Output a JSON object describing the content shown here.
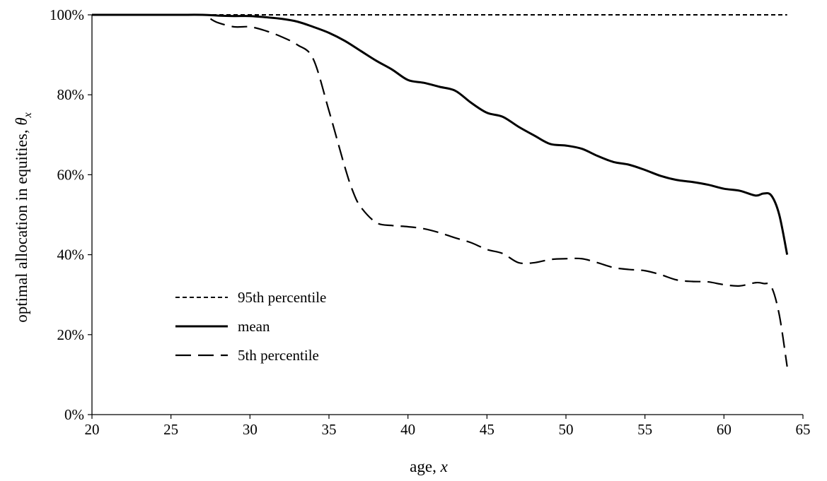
{
  "chart_data": {
    "type": "line",
    "title": "",
    "xlabel": {
      "text": "age, ",
      "var": "x"
    },
    "ylabel": {
      "text": "optimal allocation in equities, ",
      "var": "θ",
      "sub": "x"
    },
    "xlim": [
      20,
      65
    ],
    "ylim": [
      0,
      1
    ],
    "xticks": [
      20,
      25,
      30,
      35,
      40,
      45,
      50,
      55,
      60,
      65
    ],
    "xtick_labels": [
      "20",
      "25",
      "30",
      "35",
      "40",
      "45",
      "50",
      "55",
      "60",
      "65"
    ],
    "yticks": [
      0,
      0.2,
      0.4,
      0.6,
      0.8,
      1.0
    ],
    "ytick_labels": [
      "0%",
      "20%",
      "40%",
      "60%",
      "80%",
      "100%"
    ],
    "grid": false,
    "legend_position": "lower-left",
    "series": [
      {
        "name": "95th percentile",
        "style": "dotted",
        "color": "#000000",
        "x": [
          20,
          64
        ],
        "y": [
          1.0,
          1.0
        ]
      },
      {
        "name": "mean",
        "style": "solid",
        "color": "#000000",
        "x": [
          20,
          25,
          27,
          28,
          29,
          30,
          31,
          32,
          33,
          34,
          35,
          36,
          37,
          38,
          39,
          40,
          41,
          42,
          43,
          44,
          45,
          46,
          47,
          48,
          49,
          50,
          51,
          52,
          53,
          54,
          55,
          56,
          57,
          58,
          59,
          60,
          61,
          62,
          62.5,
          63,
          63.5,
          64
        ],
        "y": [
          1.0,
          1.0,
          1.0,
          0.998,
          0.997,
          0.997,
          0.994,
          0.99,
          0.983,
          0.97,
          0.955,
          0.935,
          0.91,
          0.885,
          0.863,
          0.837,
          0.83,
          0.82,
          0.81,
          0.78,
          0.755,
          0.745,
          0.72,
          0.698,
          0.677,
          0.673,
          0.665,
          0.647,
          0.632,
          0.625,
          0.612,
          0.597,
          0.587,
          0.582,
          0.575,
          0.565,
          0.56,
          0.548,
          0.553,
          0.548,
          0.5,
          0.4
        ]
      },
      {
        "name": "5th percentile",
        "style": "dashed",
        "color": "#000000",
        "x": [
          27.5,
          28,
          29,
          30,
          31,
          32,
          33,
          34,
          35,
          36,
          36.5,
          37,
          38,
          39,
          40,
          41,
          42,
          43,
          44,
          45,
          46,
          47,
          48,
          49,
          50,
          51,
          52,
          53,
          54,
          55,
          56,
          57,
          58,
          59,
          60,
          61,
          62,
          62.5,
          63,
          63.5,
          64
        ],
        "y": [
          0.99,
          0.98,
          0.97,
          0.97,
          0.96,
          0.945,
          0.925,
          0.89,
          0.76,
          0.62,
          0.56,
          0.52,
          0.48,
          0.473,
          0.47,
          0.465,
          0.455,
          0.442,
          0.43,
          0.413,
          0.403,
          0.38,
          0.38,
          0.388,
          0.39,
          0.39,
          0.38,
          0.368,
          0.363,
          0.36,
          0.35,
          0.337,
          0.333,
          0.332,
          0.325,
          0.322,
          0.33,
          0.328,
          0.32,
          0.25,
          0.12
        ]
      }
    ]
  }
}
